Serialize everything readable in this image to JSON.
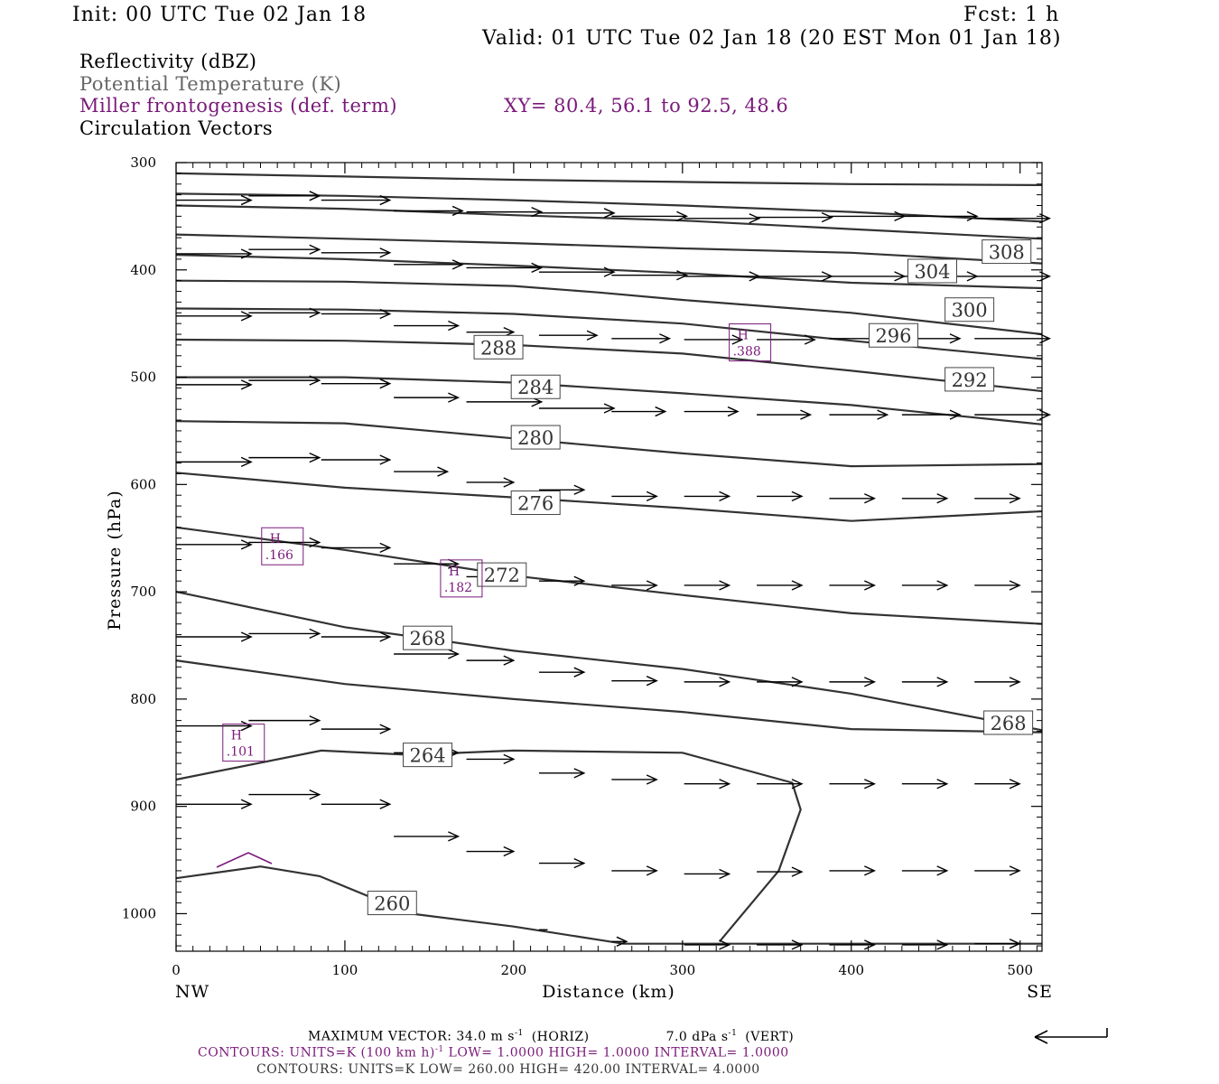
{
  "header": {
    "init": "Init: 00 UTC Tue 02 Jan 18",
    "fcst": "Fcst:     1 h",
    "valid": "Valid: 01 UTC Tue 02 Jan 18 (20 EST Mon 01 Jan 18)"
  },
  "legend": {
    "reflectivity": "Reflectivity (dBZ)",
    "theta": "Potential Temperature (K)",
    "miller": "Miller frontogenesis (def. term)",
    "xy": "XY=  80.4, 56.1 to  92.5, 48.6",
    "circulation": "Circulation Vectors"
  },
  "colors": {
    "theta": "#333333",
    "miller": "#7a1a7a",
    "vectors": "#000000",
    "theta_label": "#555555"
  },
  "footer": {
    "max_vector": "MAXIMUM VECTOR:  34.0 m s",
    "horiz": "(HORIZ)",
    "vert_value": "7.0 dPa s",
    "vert": "(VERT)",
    "neg1": "-1",
    "contours_frontogenesis_a": "CONTOURS:  UNITS=K (100 km h)",
    "contours_frontogenesis_b": "  LOW=   1.0000       HIGH=   1.0000       INTERVAL=    1.0000",
    "contours_theta": "CONTOURS:  UNITS=K  LOW=   260.00        HIGH=   420.00        INTERVAL=    4.0000"
  },
  "chart_data": {
    "type": "line",
    "xlabel": "Distance (km)",
    "ylabel": "Pressure (hPa)",
    "xlim": [
      0,
      513
    ],
    "ylim": [
      1035,
      300
    ],
    "x_ticks": [
      0,
      100,
      200,
      300,
      400,
      500
    ],
    "y_ticks": [
      300,
      400,
      500,
      600,
      700,
      800,
      900,
      1000
    ],
    "x_end_labels": {
      "left": "NW",
      "right": "SE"
    },
    "theta_contours": [
      {
        "theta": "",
        "points": [
          [
            0,
            310
          ],
          [
            100,
            313
          ],
          [
            200,
            316
          ],
          [
            300,
            318
          ],
          [
            400,
            320
          ],
          [
            513,
            321
          ]
        ]
      },
      {
        "theta": "",
        "points": [
          [
            0,
            329
          ],
          [
            100,
            331
          ],
          [
            200,
            335
          ],
          [
            300,
            340
          ],
          [
            400,
            346
          ],
          [
            513,
            355
          ]
        ]
      },
      {
        "theta": "",
        "points": [
          [
            0,
            340
          ],
          [
            100,
            343
          ],
          [
            200,
            349
          ],
          [
            300,
            354
          ],
          [
            400,
            362
          ],
          [
            513,
            371
          ]
        ]
      },
      {
        "theta": "308",
        "points": [
          [
            0,
            367
          ],
          [
            100,
            371
          ],
          [
            200,
            375
          ],
          [
            300,
            380
          ],
          [
            400,
            384
          ],
          [
            513,
            394
          ]
        ]
      },
      {
        "theta": "304",
        "points": [
          [
            0,
            386
          ],
          [
            100,
            390
          ],
          [
            200,
            396
          ],
          [
            300,
            403
          ],
          [
            400,
            412
          ],
          [
            513,
            417
          ]
        ]
      },
      {
        "theta": "300",
        "points": [
          [
            0,
            410
          ],
          [
            100,
            411
          ],
          [
            200,
            415
          ],
          [
            250,
            421
          ],
          [
            300,
            428
          ],
          [
            400,
            440
          ],
          [
            513,
            460
          ]
        ]
      },
      {
        "theta": "296",
        "points": [
          [
            0,
            436
          ],
          [
            100,
            437
          ],
          [
            200,
            441
          ],
          [
            300,
            450
          ],
          [
            400,
            466
          ],
          [
            513,
            483
          ]
        ]
      },
      {
        "theta": "288",
        "points": [
          [
            0,
            465
          ],
          [
            100,
            466
          ],
          [
            200,
            470
          ],
          [
            300,
            478
          ],
          [
            400,
            494
          ],
          [
            513,
            513
          ]
        ]
      },
      {
        "theta": "292",
        "points": [
          [
            0,
            500
          ],
          [
            100,
            500
          ],
          [
            200,
            505
          ],
          [
            300,
            515
          ],
          [
            400,
            526
          ],
          [
            513,
            544
          ]
        ]
      },
      {
        "theta": "280",
        "points": [
          [
            0,
            541
          ],
          [
            100,
            543
          ],
          [
            200,
            557
          ],
          [
            300,
            571
          ],
          [
            400,
            583
          ],
          [
            513,
            581
          ]
        ]
      },
      {
        "theta": "276",
        "points": [
          [
            0,
            589
          ],
          [
            100,
            603
          ],
          [
            200,
            612
          ],
          [
            300,
            622
          ],
          [
            400,
            634
          ],
          [
            513,
            625
          ]
        ]
      },
      {
        "theta": "272",
        "points": [
          [
            0,
            640
          ],
          [
            100,
            661
          ],
          [
            200,
            685
          ],
          [
            300,
            703
          ],
          [
            400,
            720
          ],
          [
            513,
            730
          ]
        ]
      },
      {
        "theta": "268",
        "points": [
          [
            0,
            700
          ],
          [
            100,
            733
          ],
          [
            200,
            755
          ],
          [
            300,
            772
          ],
          [
            400,
            795
          ],
          [
            513,
            829
          ]
        ]
      },
      {
        "theta": "268",
        "points": [
          [
            0,
            764
          ],
          [
            100,
            786
          ],
          [
            200,
            800
          ],
          [
            300,
            812
          ],
          [
            400,
            828
          ],
          [
            513,
            831
          ]
        ]
      },
      {
        "theta": "264",
        "points": [
          [
            0,
            875
          ],
          [
            86,
            848
          ],
          [
            139,
            852
          ],
          [
            200,
            848
          ],
          [
            300,
            850
          ],
          [
            365,
            878
          ],
          [
            370,
            903
          ],
          [
            357,
            960
          ],
          [
            322,
            1026
          ]
        ]
      },
      {
        "theta": "260",
        "points": [
          [
            0,
            967
          ],
          [
            50,
            956
          ],
          [
            85,
            965
          ],
          [
            139,
            1000
          ],
          [
            200,
            1012
          ],
          [
            265,
            1028
          ],
          [
            513,
            1028
          ]
        ]
      }
    ],
    "frontogenesis_maxima": [
      {
        "label": "H",
        "value": ".388",
        "x": 340,
        "p": 468
      },
      {
        "label": "H",
        "value": ".166",
        "x": 63,
        "p": 658
      },
      {
        "label": "H",
        "value": ".182",
        "x": 169,
        "p": 688
      },
      {
        "label": "H",
        "value": ".101",
        "x": 40,
        "p": 841
      }
    ],
    "theta_labels": [
      {
        "text": "308",
        "x": 492,
        "p": 383
      },
      {
        "text": "304",
        "x": 448,
        "p": 401
      },
      {
        "text": "300",
        "x": 470,
        "p": 437
      },
      {
        "text": "296",
        "x": 425,
        "p": 461
      },
      {
        "text": "288",
        "x": 191,
        "p": 472
      },
      {
        "text": "292",
        "x": 470,
        "p": 502
      },
      {
        "text": "284",
        "x": 213,
        "p": 509
      },
      {
        "text": "280",
        "x": 213,
        "p": 556
      },
      {
        "text": "276",
        "x": 213,
        "p": 617
      },
      {
        "text": "272",
        "x": 193,
        "p": 684
      },
      {
        "text": "268",
        "x": 149,
        "p": 743
      },
      {
        "text": "268",
        "x": 493,
        "p": 822
      },
      {
        "text": "264",
        "x": 149,
        "p": 852
      },
      {
        "text": "260",
        "x": 128,
        "p": 990
      }
    ],
    "vectors": [
      [
        0,
        335,
        35,
        0
      ],
      [
        43,
        331,
        33,
        0
      ],
      [
        86,
        335,
        32,
        0
      ],
      [
        129,
        345,
        32,
        0
      ],
      [
        172,
        346,
        35,
        0
      ],
      [
        215,
        347,
        35,
        0
      ],
      [
        258,
        350,
        35,
        0
      ],
      [
        301,
        352,
        35,
        0
      ],
      [
        344,
        351,
        35,
        0
      ],
      [
        387,
        350,
        35,
        0
      ],
      [
        430,
        350,
        35,
        0
      ],
      [
        473,
        352,
        35,
        0
      ],
      [
        0,
        385,
        35,
        0
      ],
      [
        43,
        381,
        33,
        0
      ],
      [
        86,
        384,
        32,
        0
      ],
      [
        129,
        395,
        32,
        0
      ],
      [
        172,
        398,
        35,
        0
      ],
      [
        215,
        402,
        35,
        0
      ],
      [
        258,
        405,
        35,
        0
      ],
      [
        301,
        406,
        35,
        0
      ],
      [
        344,
        406,
        35,
        0
      ],
      [
        387,
        406,
        35,
        0
      ],
      [
        430,
        406,
        35,
        0
      ],
      [
        473,
        406,
        35,
        0
      ],
      [
        0,
        443,
        35,
        0
      ],
      [
        43,
        440,
        33,
        0
      ],
      [
        86,
        441,
        32,
        0
      ],
      [
        129,
        452,
        30,
        0
      ],
      [
        172,
        458,
        22,
        0
      ],
      [
        215,
        461,
        27,
        0
      ],
      [
        258,
        464,
        27,
        0
      ],
      [
        301,
        465,
        27,
        0
      ],
      [
        344,
        465,
        27,
        0
      ],
      [
        387,
        464,
        30,
        0
      ],
      [
        430,
        464,
        27,
        0
      ],
      [
        473,
        464,
        35,
        0
      ],
      [
        0,
        507,
        35,
        0
      ],
      [
        43,
        503,
        33,
        0
      ],
      [
        86,
        506,
        32,
        0
      ],
      [
        129,
        519,
        30,
        0
      ],
      [
        172,
        523,
        35,
        0
      ],
      [
        215,
        529,
        35,
        0
      ],
      [
        258,
        532,
        25,
        0
      ],
      [
        301,
        532,
        25,
        0
      ],
      [
        344,
        535,
        25,
        0
      ],
      [
        387,
        535,
        27,
        0
      ],
      [
        430,
        535,
        27,
        0
      ],
      [
        473,
        535,
        35,
        0
      ],
      [
        0,
        579,
        35,
        0
      ],
      [
        43,
        575,
        33,
        0
      ],
      [
        86,
        577,
        32,
        0
      ],
      [
        129,
        588,
        25,
        0
      ],
      [
        172,
        598,
        22,
        0
      ],
      [
        215,
        605,
        21,
        0
      ],
      [
        258,
        611,
        21,
        0
      ],
      [
        301,
        611,
        21,
        0
      ],
      [
        344,
        611,
        21,
        0
      ],
      [
        387,
        613,
        21,
        0
      ],
      [
        430,
        613,
        21,
        0
      ],
      [
        473,
        613,
        21,
        0
      ],
      [
        0,
        656,
        35,
        0
      ],
      [
        43,
        654,
        33,
        0
      ],
      [
        86,
        659,
        32,
        0
      ],
      [
        129,
        674,
        30,
        0
      ],
      [
        172,
        686,
        25,
        0
      ],
      [
        215,
        690,
        21,
        0
      ],
      [
        258,
        694,
        21,
        0
      ],
      [
        301,
        694,
        21,
        0
      ],
      [
        344,
        694,
        21,
        0
      ],
      [
        387,
        694,
        21,
        0
      ],
      [
        430,
        694,
        21,
        0
      ],
      [
        473,
        694,
        21,
        0
      ],
      [
        0,
        742,
        35,
        0
      ],
      [
        43,
        739,
        33,
        0
      ],
      [
        86,
        742,
        32,
        0
      ],
      [
        129,
        758,
        30,
        0
      ],
      [
        172,
        764,
        22,
        0
      ],
      [
        215,
        775,
        21,
        0
      ],
      [
        258,
        783,
        21,
        0
      ],
      [
        301,
        784,
        21,
        0
      ],
      [
        344,
        784,
        21,
        0
      ],
      [
        387,
        784,
        21,
        0
      ],
      [
        430,
        784,
        21,
        0
      ],
      [
        473,
        784,
        21,
        0
      ],
      [
        0,
        825,
        35,
        0
      ],
      [
        43,
        820,
        33,
        0
      ],
      [
        86,
        828,
        32,
        0
      ],
      [
        129,
        850,
        30,
        0
      ],
      [
        172,
        856,
        22,
        0
      ],
      [
        215,
        869,
        21,
        0
      ],
      [
        258,
        875,
        21,
        0
      ],
      [
        301,
        879,
        21,
        0
      ],
      [
        344,
        879,
        21,
        0
      ],
      [
        387,
        879,
        21,
        0
      ],
      [
        430,
        879,
        21,
        0
      ],
      [
        473,
        879,
        21,
        0
      ],
      [
        0,
        898,
        35,
        0
      ],
      [
        43,
        889,
        33,
        0
      ],
      [
        86,
        898,
        32,
        0
      ],
      [
        129,
        928,
        30,
        0
      ],
      [
        172,
        942,
        22,
        0
      ],
      [
        215,
        953,
        21,
        0
      ],
      [
        258,
        960,
        21,
        0
      ],
      [
        301,
        963,
        21,
        0
      ],
      [
        344,
        961,
        21,
        0
      ],
      [
        387,
        960,
        21,
        0
      ],
      [
        430,
        960,
        21,
        0
      ],
      [
        473,
        960,
        21,
        0
      ],
      [
        215,
        1015,
        4,
        0
      ],
      [
        258,
        1026,
        7,
        0
      ],
      [
        301,
        1029,
        21,
        0
      ],
      [
        344,
        1029,
        21,
        0
      ],
      [
        387,
        1029,
        21,
        0
      ],
      [
        430,
        1029,
        21,
        0
      ],
      [
        473,
        1028,
        21,
        0
      ]
    ]
  }
}
